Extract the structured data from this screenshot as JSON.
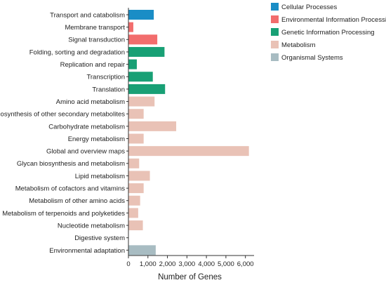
{
  "chart_data": {
    "type": "bar",
    "orientation": "horizontal",
    "title": "",
    "xlabel": "Number of Genes",
    "ylabel": "",
    "xlim": [
      0,
      6300
    ],
    "x_ticks": [
      0,
      1000,
      2000,
      3000,
      4000,
      5000,
      6000
    ],
    "x_tick_labels": [
      "0",
      "1,000",
      "2,000",
      "3,000",
      "4,000",
      "5,000",
      "6,000"
    ],
    "grid": false,
    "legend_position": "top-right",
    "groups": [
      {
        "name": "Cellular Processes",
        "color": "#1a8dc6"
      },
      {
        "name": "Environmental Information Processing",
        "color": "#f26d6d"
      },
      {
        "name": "Genetic Information Processing",
        "color": "#18a075"
      },
      {
        "name": "Metabolism",
        "color": "#e9c2b6"
      },
      {
        "name": "Organismal Systems",
        "color": "#a8bcc2"
      }
    ],
    "categories": [
      "Transport and catabolism",
      "Membrane transport",
      "Signal transduction",
      "Folding, sorting and degradation",
      "Replication and repair",
      "Transcription",
      "Translation",
      "Amino acid metabolism",
      "Biosynthesis of other secondary metabolites",
      "Carbohydrate metabolism",
      "Energy metabolism",
      "Global and overview maps",
      "Glycan biosynthesis and metabolism",
      "Lipid metabolism",
      "Metabolism of cofactors and vitamins",
      "Metabolism of other amino acids",
      "Metabolism of terpenoids and polyketides",
      "Nucleotide metabolism",
      "Digestive system",
      "Environmental adaptation"
    ],
    "values": [
      1300,
      250,
      1480,
      1850,
      430,
      1250,
      1880,
      1340,
      780,
      2450,
      780,
      6180,
      550,
      1100,
      780,
      600,
      500,
      740,
      0,
      1400
    ],
    "category_groups": [
      0,
      1,
      1,
      2,
      2,
      2,
      2,
      3,
      3,
      3,
      3,
      3,
      3,
      3,
      3,
      3,
      3,
      3,
      4,
      4
    ]
  }
}
